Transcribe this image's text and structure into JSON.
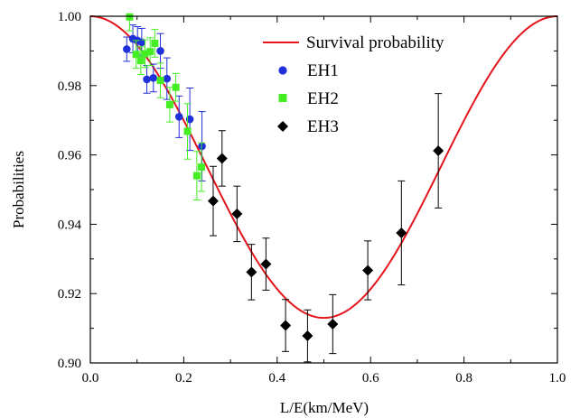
{
  "chart_data": {
    "type": "scatter",
    "xlabel": "L/E(km/MeV)",
    "ylabel": "Probabilities",
    "xlim": [
      0.0,
      1.0
    ],
    "ylim": [
      0.9,
      1.0
    ],
    "x_ticks": [
      "0.0",
      "0.2",
      "0.4",
      "0.6",
      "0.8",
      "1.0"
    ],
    "y_ticks": [
      "0.90",
      "0.92",
      "0.94",
      "0.96",
      "0.98",
      "1.00"
    ],
    "legend_position": "top-right",
    "curve": {
      "name": "Survival probability",
      "color": "#e3141b",
      "sin2_2theta13": 0.087,
      "period_km_per_mev": 1.0
    },
    "series": [
      {
        "name": "EH1",
        "marker": "circle",
        "color": "#1f2fd9",
        "points": [
          {
            "x": 0.078,
            "y": 0.9905,
            "err": 0.0035
          },
          {
            "x": 0.091,
            "y": 0.9935,
            "err": 0.004
          },
          {
            "x": 0.101,
            "y": 0.993,
            "err": 0.004
          },
          {
            "x": 0.11,
            "y": 0.9925,
            "err": 0.004
          },
          {
            "x": 0.121,
            "y": 0.9818,
            "err": 0.004
          },
          {
            "x": 0.135,
            "y": 0.9822,
            "err": 0.004
          },
          {
            "x": 0.15,
            "y": 0.99,
            "err": 0.005
          },
          {
            "x": 0.164,
            "y": 0.982,
            "err": 0.006
          },
          {
            "x": 0.19,
            "y": 0.971,
            "err": 0.006
          },
          {
            "x": 0.213,
            "y": 0.9703,
            "err": 0.009
          },
          {
            "x": 0.239,
            "y": 0.9625,
            "err": 0.01
          }
        ]
      },
      {
        "name": "EH2",
        "marker": "square",
        "color": "#44ee22",
        "points": [
          {
            "x": 0.084,
            "y": 0.9998,
            "err": 0.004
          },
          {
            "x": 0.098,
            "y": 0.989,
            "err": 0.004
          },
          {
            "x": 0.108,
            "y": 0.9872,
            "err": 0.004
          },
          {
            "x": 0.117,
            "y": 0.9892,
            "err": 0.004
          },
          {
            "x": 0.128,
            "y": 0.9898,
            "err": 0.004
          },
          {
            "x": 0.138,
            "y": 0.9922,
            "err": 0.004
          },
          {
            "x": 0.15,
            "y": 0.9815,
            "err": 0.005
          },
          {
            "x": 0.17,
            "y": 0.9745,
            "err": 0.005
          },
          {
            "x": 0.183,
            "y": 0.9795,
            "err": 0.004
          },
          {
            "x": 0.208,
            "y": 0.9668,
            "err": 0.008
          },
          {
            "x": 0.228,
            "y": 0.954,
            "err": 0.007
          },
          {
            "x": 0.238,
            "y": 0.9565,
            "err": 0.007
          }
        ]
      },
      {
        "name": "EH3",
        "marker": "diamond",
        "color": "#000000",
        "points": [
          {
            "x": 0.263,
            "y": 0.9467,
            "err": 0.01
          },
          {
            "x": 0.282,
            "y": 0.959,
            "err": 0.008
          },
          {
            "x": 0.314,
            "y": 0.943,
            "err": 0.008
          },
          {
            "x": 0.345,
            "y": 0.9262,
            "err": 0.008
          },
          {
            "x": 0.376,
            "y": 0.9285,
            "err": 0.0075
          },
          {
            "x": 0.418,
            "y": 0.9108,
            "err": 0.0075
          },
          {
            "x": 0.465,
            "y": 0.9078,
            "err": 0.0075
          },
          {
            "x": 0.519,
            "y": 0.9112,
            "err": 0.0085
          },
          {
            "x": 0.594,
            "y": 0.9267,
            "err": 0.0085
          },
          {
            "x": 0.666,
            "y": 0.9375,
            "err": 0.015
          },
          {
            "x": 0.745,
            "y": 0.9612,
            "err": 0.0165
          }
        ]
      }
    ]
  }
}
